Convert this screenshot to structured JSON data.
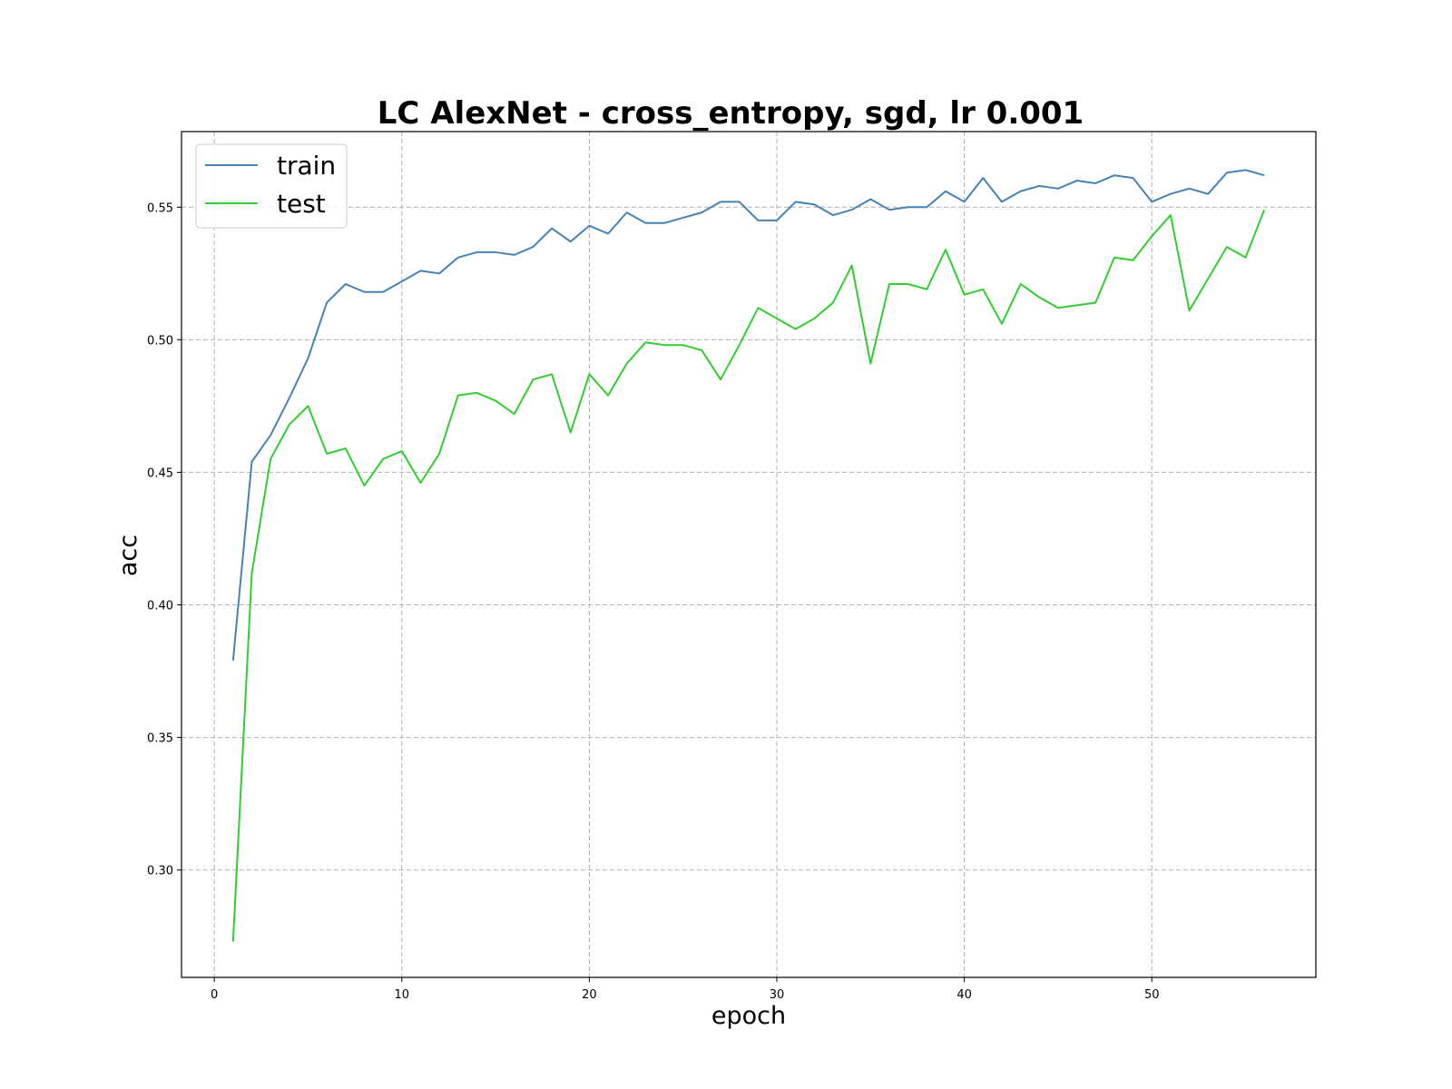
{
  "chart_data": {
    "type": "line",
    "title": "LC AlexNet - cross_entropy, sgd, lr 0.001",
    "xlabel": "epoch",
    "ylabel": "acc",
    "xlim": [
      -1.75,
      58.75
    ],
    "ylim": [
      0.2595,
      0.5785
    ],
    "xticks": [
      0,
      10,
      20,
      30,
      40,
      50
    ],
    "yticks": [
      0.3,
      0.35,
      0.4,
      0.45,
      0.5,
      0.55
    ],
    "xtick_labels": [
      "0",
      "10",
      "20",
      "30",
      "40",
      "50"
    ],
    "ytick_labels": [
      "0.30",
      "0.35",
      "0.40",
      "0.45",
      "0.50",
      "0.55"
    ],
    "grid": true,
    "legend_position": "upper-left",
    "x": [
      1,
      2,
      3,
      4,
      5,
      6,
      7,
      8,
      9,
      10,
      11,
      12,
      13,
      14,
      15,
      16,
      17,
      18,
      19,
      20,
      21,
      22,
      23,
      24,
      25,
      26,
      27,
      28,
      29,
      30,
      31,
      32,
      33,
      34,
      35,
      36,
      37,
      38,
      39,
      40,
      41,
      42,
      43,
      44,
      45,
      46,
      47,
      48,
      49,
      50,
      51,
      52,
      53,
      54,
      55,
      56
    ],
    "series": [
      {
        "name": "train",
        "color": "#4682b4",
        "values": [
          0.379,
          0.454,
          0.464,
          0.478,
          0.493,
          0.514,
          0.521,
          0.518,
          0.518,
          0.522,
          0.526,
          0.525,
          0.531,
          0.533,
          0.533,
          0.532,
          0.535,
          0.542,
          0.537,
          0.543,
          0.54,
          0.548,
          0.544,
          0.544,
          0.546,
          0.548,
          0.552,
          0.552,
          0.545,
          0.545,
          0.552,
          0.551,
          0.547,
          0.549,
          0.553,
          0.549,
          0.55,
          0.55,
          0.556,
          0.552,
          0.561,
          0.552,
          0.556,
          0.558,
          0.557,
          0.56,
          0.559,
          0.562,
          0.561,
          0.552,
          0.555,
          0.557,
          0.555,
          0.563,
          0.564,
          0.562
        ]
      },
      {
        "name": "test",
        "color": "#32cd32",
        "values": [
          0.273,
          0.412,
          0.455,
          0.468,
          0.475,
          0.457,
          0.459,
          0.445,
          0.455,
          0.458,
          0.446,
          0.457,
          0.479,
          0.48,
          0.477,
          0.472,
          0.485,
          0.487,
          0.465,
          0.487,
          0.479,
          0.491,
          0.499,
          0.498,
          0.498,
          0.496,
          0.485,
          0.498,
          0.512,
          0.508,
          0.504,
          0.508,
          0.514,
          0.528,
          0.491,
          0.521,
          0.521,
          0.519,
          0.534,
          0.517,
          0.519,
          0.506,
          0.521,
          0.516,
          0.512,
          0.513,
          0.514,
          0.531,
          0.53,
          0.539,
          0.547,
          0.511,
          0.523,
          0.535,
          0.531,
          0.549
        ]
      }
    ]
  }
}
